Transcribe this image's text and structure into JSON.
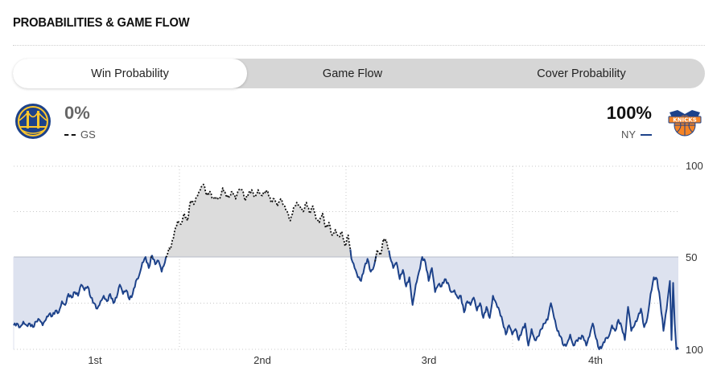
{
  "header": {
    "title": "PROBABILITIES & GAME FLOW"
  },
  "tabs": [
    {
      "label": "Win Probability",
      "active": true
    },
    {
      "label": "Game Flow",
      "active": false
    },
    {
      "label": "Cover Probability",
      "active": false
    }
  ],
  "away_team": {
    "abbr": "GS",
    "probability": "0%",
    "logo_icon": "warriors-logo-icon",
    "color": "#1d428a",
    "line_style": "dashed-black"
  },
  "home_team": {
    "abbr": "NY",
    "probability": "100%",
    "logo_icon": "knicks-logo-icon",
    "color": "#1d428a",
    "accent": "#f58426"
  },
  "chart_data": {
    "type": "line",
    "y_tick_labels": [
      "100",
      "50",
      "100"
    ],
    "x_tick_labels": [
      "1st",
      "2nd",
      "3rd",
      "4th"
    ],
    "ylim": [
      -50,
      50
    ],
    "baseline": 0,
    "grid": true,
    "fill_colors": {
      "ny": "#dde2ef",
      "gs": "#dcdcdc"
    },
    "line_color": "#1d428a",
    "gs_line_color": "#111111",
    "series": [
      {
        "x": [
          0,
          1.5,
          3,
          4.5,
          6,
          7.5,
          9,
          10.5,
          12,
          13.5,
          15,
          16.5,
          18,
          19.5,
          21,
          22.5,
          24,
          25.5,
          27,
          28.5,
          30,
          31.5,
          33,
          34.5,
          36,
          37.5,
          39,
          40.5,
          42,
          43.5,
          45,
          46.5,
          48,
          49.5,
          51,
          52.5,
          54,
          55.5,
          57,
          58.5,
          60,
          61.5,
          63,
          64.5,
          66,
          67.5,
          69,
          70.5,
          72,
          73.5,
          75,
          76.5,
          78,
          79.5,
          81,
          82.5,
          84,
          85.5,
          87,
          88.5,
          90,
          91.5,
          93,
          94.5,
          96,
          97.5,
          99,
          100.5,
          102,
          103.5,
          105,
          106.5,
          108,
          109.5,
          111,
          112.5,
          114,
          115.5,
          117,
          118.5,
          120,
          121.5,
          123,
          124.5,
          126,
          127.5,
          129,
          130.5,
          132,
          133.5,
          135,
          136.5,
          138,
          139.5,
          141,
          142.5,
          144,
          145.5,
          147,
          148.5,
          150,
          151.5,
          153,
          154.5,
          156,
          157.5,
          159,
          160.5,
          162,
          163.5,
          165,
          166.5,
          168,
          169.5,
          171,
          172.5,
          174,
          175.5,
          177,
          178.5,
          180,
          181.5,
          183,
          184.5,
          186,
          187.5,
          189,
          190.5,
          192,
          193.5,
          195,
          196.5,
          198,
          199.5,
          201,
          202.5,
          204,
          205.5,
          207,
          208.5,
          210,
          211.5,
          213,
          214.5,
          216,
          217.5,
          219,
          220.5,
          222,
          223.5,
          225,
          226.5,
          228,
          229.5,
          231,
          232.5,
          234,
          235.5,
          237,
          238.5,
          240,
          241.5,
          243,
          244.5,
          246,
          247.5,
          249,
          250.5,
          252,
          253.5,
          255,
          256.5,
          258,
          259.5,
          261,
          262.5,
          264,
          265.5,
          267,
          268.5,
          270,
          271.5,
          273,
          274.5,
          276,
          277.5,
          279,
          280.5,
          282,
          283.5,
          285,
          286.5,
          288,
          289.5,
          291,
          292.5,
          294,
          295.5,
          297,
          298.5,
          300,
          301.5,
          303,
          304.5,
          306,
          307.5,
          309,
          310.5,
          312,
          313.5,
          315,
          316.5,
          318,
          319.5,
          321,
          322.5,
          324,
          325.5,
          327,
          328.5,
          330,
          331.5,
          333,
          334.5,
          336,
          337.5,
          339,
          340.5,
          342,
          343.5,
          345,
          346.5,
          348,
          349.5,
          351,
          352.5,
          354,
          355.5,
          357,
          358.5,
          360,
          361.5,
          363,
          364.5,
          366,
          367.5,
          369,
          370.5,
          372,
          373.5,
          375,
          376.5,
          378,
          379.5,
          381,
          382.5,
          384,
          385.5,
          387,
          388.5,
          390,
          391.5,
          393,
          394.5,
          396,
          397.5,
          399,
          400.5,
          402,
          403.5,
          405,
          406.5,
          408,
          409.5,
          411,
          412.5,
          414,
          415.5,
          417,
          418.5,
          420,
          421.5,
          423,
          424.5,
          426,
          427.5,
          429,
          430.5,
          432,
          433.5,
          435,
          436.5,
          438,
          439.5,
          441,
          442.5,
          444,
          445.5,
          447,
          448.5,
          450,
          451.5,
          453,
          454.5,
          456,
          457.5,
          459,
          460.5,
          462,
          463.5,
          465,
          466.5,
          468,
          469.5,
          471,
          472.5,
          474,
          475.5,
          477,
          478.5,
          480,
          481.5,
          483,
          484.5,
          486,
          487.5,
          489,
          490.5,
          492,
          493.5,
          495,
          496.5,
          498,
          499.5,
          501,
          502.5,
          504,
          505.5,
          507,
          508.5,
          510,
          511.5,
          513,
          514.5,
          516,
          517.5,
          519,
          520.5,
          522,
          523.5,
          525,
          526.5,
          528,
          529.5,
          531,
          532.5,
          534,
          535.5,
          537,
          538.5,
          540,
          541.5,
          543,
          544.5,
          546,
          547.5,
          549,
          550.5,
          552,
          553.5,
          555,
          556.5,
          558,
          559.5,
          561,
          562.5,
          564,
          565.5,
          567,
          568.5,
          570,
          571.5,
          573,
          574.5,
          576,
          577.5,
          579,
          580.5,
          582,
          583.5,
          585,
          586.5,
          588,
          589.5,
          591,
          592.5,
          594,
          595.5,
          597,
          598.5,
          600,
          601.5,
          603,
          604.5,
          606,
          607.5,
          609,
          610.5,
          612,
          613.5,
          615,
          616.5,
          618,
          619.5,
          621,
          622.5,
          624,
          625.5,
          627,
          628.5,
          630,
          631.5,
          633,
          634.5,
          636,
          637.5,
          639,
          640.5,
          642,
          643.5,
          645,
          646.5,
          648,
          649.5,
          651,
          652.5,
          654,
          655.5,
          657,
          658.5,
          660,
          661.5,
          663,
          664.5,
          666,
          667.5,
          669,
          670.5,
          672,
          673.5,
          675,
          676.5,
          678,
          679.5,
          681,
          682.5,
          684,
          685.5,
          687,
          688.5,
          690,
          691.5,
          693,
          694.5,
          696,
          697.5,
          699,
          700.5,
          702,
          703.5,
          705,
          706.5,
          708,
          709.5,
          711,
          712.5,
          714,
          715.5,
          717,
          718.5,
          720,
          721.5,
          723,
          724.5,
          726,
          727.5,
          729,
          730.5,
          732,
          733.5,
          735,
          736.5,
          738,
          739.5,
          741,
          742.5,
          744,
          745.5,
          747,
          748.5,
          750,
          751.5,
          753,
          754.5,
          756,
          757.5,
          759,
          760.5,
          762,
          763.5,
          765,
          766.5,
          768,
          769.5,
          771,
          772.5,
          774,
          775.5,
          777,
          778.5,
          780,
          781.5,
          783,
          784.5,
          786,
          787.5,
          789,
          790.5,
          792,
          793.5,
          795,
          796.5,
          798,
          799.5,
          801,
          802.5,
          804,
          805.5,
          807,
          808.5,
          810,
          811.5,
          813,
          814.5,
          816,
          817.5,
          819,
          820.5,
          822,
          823.5,
          825,
          826.5
        ],
        "name": "",
        "y_values_description": "unused"
      }
    ],
    "keypoints": [
      [
        0,
        -37
      ],
      [
        4,
        -36
      ],
      [
        8,
        -38
      ],
      [
        12,
        -35
      ],
      [
        16,
        -37
      ],
      [
        20,
        -36
      ],
      [
        24,
        -38
      ],
      [
        28,
        -35
      ],
      [
        32,
        -34
      ],
      [
        36,
        -37
      ],
      [
        40,
        -34
      ],
      [
        44,
        -31
      ],
      [
        48,
        -32
      ],
      [
        52,
        -29
      ],
      [
        56,
        -30
      ],
      [
        60,
        -24
      ],
      [
        64,
        -26
      ],
      [
        68,
        -20
      ],
      [
        72,
        -22
      ],
      [
        76,
        -19
      ],
      [
        80,
        -21
      ],
      [
        84,
        -15
      ],
      [
        88,
        -18
      ],
      [
        92,
        -16
      ],
      [
        96,
        -22
      ],
      [
        100,
        -25
      ],
      [
        104,
        -28
      ],
      [
        108,
        -24
      ],
      [
        112,
        -21
      ],
      [
        116,
        -24
      ],
      [
        120,
        -20
      ],
      [
        124,
        -25
      ],
      [
        128,
        -22
      ],
      [
        132,
        -15
      ],
      [
        136,
        -20
      ],
      [
        140,
        -18
      ],
      [
        144,
        -23
      ],
      [
        148,
        -20
      ],
      [
        152,
        -13
      ],
      [
        156,
        -10
      ],
      [
        160,
        -3
      ],
      [
        164,
        0
      ],
      [
        168,
        -6
      ],
      [
        172,
        1
      ],
      [
        176,
        -4
      ],
      [
        180,
        -2
      ],
      [
        184,
        -8
      ],
      [
        188,
        -3
      ],
      [
        192,
        3
      ],
      [
        196,
        6
      ],
      [
        200,
        14
      ],
      [
        204,
        20
      ],
      [
        208,
        18
      ],
      [
        212,
        24
      ],
      [
        216,
        20
      ],
      [
        220,
        31
      ],
      [
        224,
        29
      ],
      [
        228,
        33
      ],
      [
        232,
        37
      ],
      [
        236,
        40
      ],
      [
        240,
        34
      ],
      [
        244,
        36
      ],
      [
        248,
        32
      ],
      [
        252,
        33
      ],
      [
        256,
        32
      ],
      [
        260,
        38
      ],
      [
        264,
        34
      ],
      [
        268,
        33
      ],
      [
        272,
        36
      ],
      [
        276,
        32
      ],
      [
        280,
        37
      ],
      [
        284,
        37
      ],
      [
        288,
        31
      ],
      [
        292,
        35
      ],
      [
        296,
        37
      ],
      [
        300,
        33
      ],
      [
        304,
        37
      ],
      [
        308,
        34
      ],
      [
        312,
        36
      ],
      [
        316,
        36
      ],
      [
        320,
        30
      ],
      [
        324,
        32
      ],
      [
        328,
        28
      ],
      [
        332,
        32
      ],
      [
        336,
        28
      ],
      [
        340,
        25
      ],
      [
        344,
        20
      ],
      [
        348,
        27
      ],
      [
        352,
        30
      ],
      [
        356,
        28
      ],
      [
        360,
        25
      ],
      [
        364,
        30
      ],
      [
        368,
        24
      ],
      [
        372,
        28
      ],
      [
        376,
        21
      ],
      [
        380,
        19
      ],
      [
        384,
        24
      ],
      [
        388,
        16
      ],
      [
        392,
        19
      ],
      [
        396,
        12
      ],
      [
        400,
        15
      ],
      [
        404,
        11
      ],
      [
        408,
        14
      ],
      [
        412,
        6
      ],
      [
        416,
        12
      ],
      [
        420,
        -1
      ],
      [
        424,
        -6
      ],
      [
        428,
        -11
      ],
      [
        432,
        -13
      ],
      [
        436,
        -6
      ],
      [
        440,
        -1
      ],
      [
        444,
        -8
      ],
      [
        448,
        -5
      ],
      [
        452,
        4
      ],
      [
        456,
        1
      ],
      [
        460,
        10
      ],
      [
        464,
        8
      ],
      [
        468,
        0
      ],
      [
        472,
        -6
      ],
      [
        476,
        -3
      ],
      [
        480,
        -12
      ],
      [
        484,
        -7
      ],
      [
        488,
        -16
      ],
      [
        492,
        -11
      ],
      [
        496,
        -26
      ],
      [
        500,
        -15
      ],
      [
        504,
        -8
      ],
      [
        508,
        0
      ],
      [
        512,
        -3
      ],
      [
        516,
        -13
      ],
      [
        520,
        -6
      ],
      [
        524,
        -19
      ],
      [
        528,
        -15
      ],
      [
        532,
        -16
      ],
      [
        536,
        -12
      ],
      [
        540,
        -14
      ],
      [
        544,
        -19
      ],
      [
        548,
        -18
      ],
      [
        552,
        -22
      ],
      [
        556,
        -21
      ],
      [
        560,
        -30
      ],
      [
        564,
        -24
      ],
      [
        568,
        -26
      ],
      [
        572,
        -22
      ],
      [
        576,
        -29
      ],
      [
        580,
        -25
      ],
      [
        584,
        -33
      ],
      [
        588,
        -27
      ],
      [
        592,
        -33
      ],
      [
        596,
        -21
      ],
      [
        600,
        -25
      ],
      [
        604,
        -29
      ],
      [
        608,
        -35
      ],
      [
        612,
        -42
      ],
      [
        616,
        -37
      ],
      [
        620,
        -42
      ],
      [
        624,
        -39
      ],
      [
        628,
        -45
      ],
      [
        632,
        -40
      ],
      [
        636,
        -36
      ],
      [
        640,
        -48
      ],
      [
        644,
        -39
      ],
      [
        648,
        -45
      ],
      [
        652,
        -43
      ],
      [
        656,
        -39
      ],
      [
        660,
        -36
      ],
      [
        664,
        -34
      ],
      [
        668,
        -25
      ],
      [
        672,
        -33
      ],
      [
        676,
        -40
      ],
      [
        680,
        -43
      ],
      [
        684,
        -48
      ],
      [
        688,
        -47
      ],
      [
        692,
        -42
      ],
      [
        696,
        -48
      ],
      [
        700,
        -45
      ],
      [
        704,
        -44
      ],
      [
        708,
        -43
      ],
      [
        712,
        -48
      ],
      [
        716,
        -43
      ],
      [
        720,
        -36
      ],
      [
        724,
        -44
      ],
      [
        728,
        -50
      ],
      [
        732,
        -48
      ],
      [
        736,
        -44
      ],
      [
        740,
        -43
      ],
      [
        744,
        -37
      ],
      [
        748,
        -40
      ],
      [
        752,
        -34
      ],
      [
        756,
        -38
      ],
      [
        760,
        -45
      ],
      [
        764,
        -27
      ],
      [
        768,
        -40
      ],
      [
        772,
        -37
      ],
      [
        776,
        -33
      ],
      [
        780,
        -28
      ],
      [
        784,
        -38
      ],
      [
        788,
        -33
      ],
      [
        792,
        -20
      ],
      [
        796,
        -11
      ],
      [
        800,
        -12
      ],
      [
        804,
        -24
      ],
      [
        808,
        -40
      ],
      [
        812,
        -28
      ],
      [
        816,
        -13
      ],
      [
        818,
        -45
      ],
      [
        820,
        -14
      ],
      [
        822,
        -36
      ],
      [
        824,
        -50
      ],
      [
        826.5,
        -50
      ]
    ]
  }
}
